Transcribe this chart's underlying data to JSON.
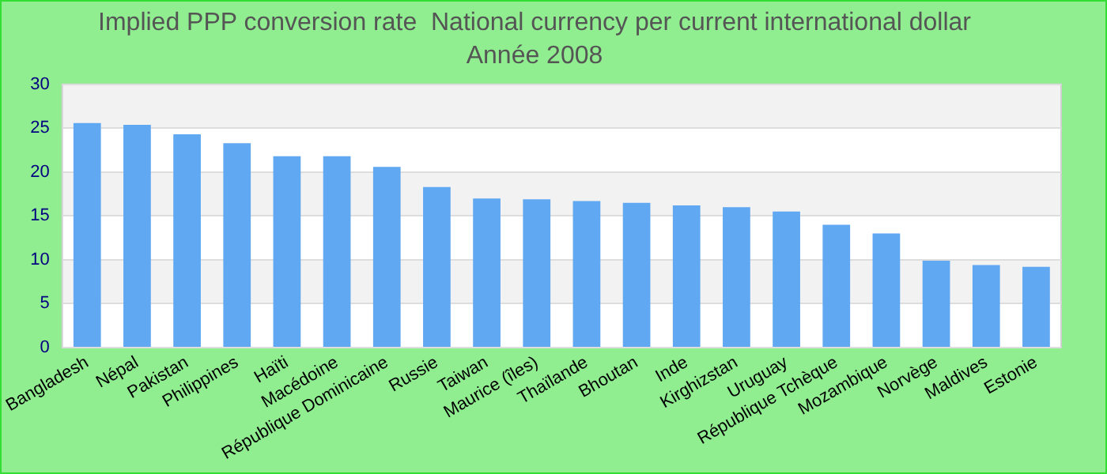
{
  "chart_data": {
    "type": "bar",
    "title": "Implied PPP conversion rate  National currency per current international dollar",
    "subtitle": "Année 2008",
    "categories": [
      "Bangladesh",
      "Népal",
      "Pakistan",
      "Philippines",
      "Haïti",
      "Macédoine",
      "République Dominicaine",
      "Russie",
      "Taiwan",
      "Maurice (îles)",
      "Thaïlande",
      "Bhoutan",
      "Inde",
      "Kirghizstan",
      "Uruguay",
      "République Tchèque",
      "Mozambique",
      "Norvège",
      "Maldives",
      "Estonie"
    ],
    "values": [
      25.6,
      25.4,
      24.3,
      23.3,
      21.8,
      21.8,
      20.6,
      18.3,
      17.0,
      16.9,
      16.7,
      16.5,
      16.2,
      16.0,
      15.5,
      14.0,
      13.0,
      9.9,
      9.4,
      9.2
    ],
    "color": "#61a8f2",
    "ylim": [
      0,
      30
    ],
    "yticks": [
      0,
      5,
      10,
      15,
      20,
      25,
      30
    ],
    "grid": "y"
  }
}
